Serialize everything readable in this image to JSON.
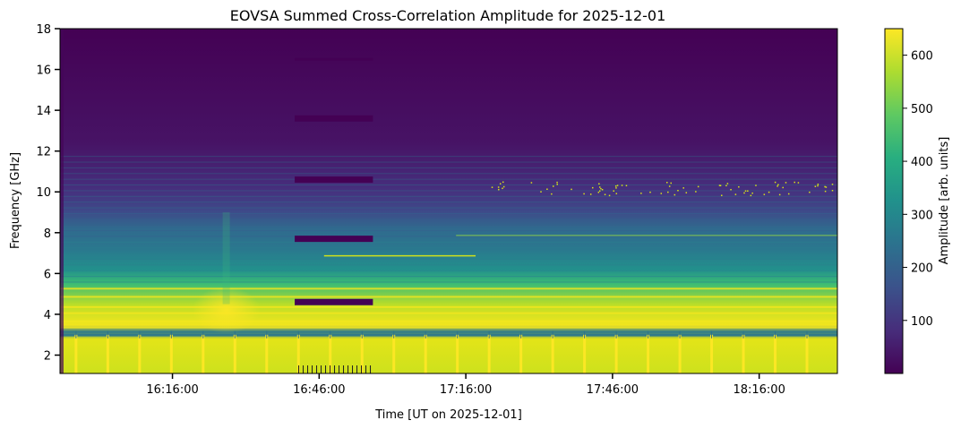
{
  "chart_data": {
    "type": "heatmap",
    "title": "EOVSA Summed Cross-Correlation Amplitude for 2025-12-01",
    "xlabel": "Time [UT on 2025-12-01]",
    "ylabel": "Frequency [GHz]",
    "colorbar_label": "Amplitude [arb. units]",
    "colormap": "viridis",
    "x_ticks": [
      "16:16:00",
      "16:46:00",
      "17:16:00",
      "17:46:00",
      "18:16:00"
    ],
    "x_range": [
      "15:53:00",
      "18:32:00"
    ],
    "y_ticks": [
      2,
      4,
      6,
      8,
      10,
      12,
      14,
      16,
      18
    ],
    "y_range": [
      1.1,
      18
    ],
    "colorbar_ticks": [
      100,
      200,
      300,
      400,
      500,
      600
    ],
    "colorbar_range": [
      0,
      650
    ],
    "grid": false,
    "description_of_values": {
      "band_1_to_3GHz": 600,
      "band_3_to_5_5GHz": 540,
      "band_5_5_to_9GHz": 300,
      "band_9_to_12GHz": 90,
      "band_12_to_18GHz": 25
    },
    "gaps": {
      "time_range": [
        "16:41:00",
        "16:57:00"
      ],
      "frequencies_GHz": [
        16.5,
        13.6,
        10.6,
        7.7,
        4.6
      ]
    }
  }
}
